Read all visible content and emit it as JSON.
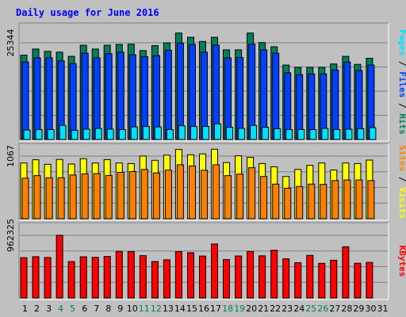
{
  "title": "Daily usage for June 2016",
  "chart_data": {
    "type": "bar",
    "title": "Daily usage for June 2016",
    "categories": [
      "1",
      "2",
      "3",
      "4",
      "5",
      "6",
      "7",
      "8",
      "9",
      "10",
      "11",
      "12",
      "13",
      "14",
      "15",
      "16",
      "17",
      "18",
      "19",
      "20",
      "21",
      "22",
      "23",
      "24",
      "25",
      "26",
      "27",
      "28",
      "29",
      "30",
      "31"
    ],
    "weekend_days": [
      "4",
      "5",
      "11",
      "12",
      "18",
      "19",
      "25",
      "26"
    ],
    "panels": [
      {
        "id": "top",
        "ymax_label": "25344",
        "ymax": 25344,
        "series": [
          {
            "name": "Hits",
            "color": "#00805a",
            "values": [
              22100,
              23700,
              23100,
              22900,
              21800,
              24700,
              23700,
              24700,
              24900,
              25000,
              23300,
              24600,
              25344,
              27900,
              26800,
              25700,
              26800,
              23500,
              23500,
              27900,
              25400,
              24300,
              19500,
              18900,
              18900,
              18900,
              19800,
              21800,
              19700,
              21300
            ]
          },
          {
            "name": "Files",
            "color": "#0040ff",
            "values": [
              20300,
              21400,
              21400,
              20600,
              19900,
              22600,
              21400,
              22500,
              22900,
              22200,
              21700,
              22000,
              23400,
              25300,
              24900,
              22900,
              24700,
              21400,
              21500,
              25000,
              23500,
              22600,
              17500,
              17000,
              17200,
              17200,
              18200,
              20300,
              18100,
              19500
            ]
          },
          {
            "name": "Pages",
            "color": "#00e0ff",
            "values": [
              2500,
              2600,
              2600,
              3700,
              2400,
              2700,
              2900,
              2700,
              2600,
              3300,
              3400,
              3300,
              2600,
              3600,
              3400,
              3400,
              4100,
              3200,
              2900,
              3700,
              3200,
              2800,
              2600,
              2600,
              2600,
              2900,
              2600,
              2700,
              2800,
              3100
            ]
          }
        ]
      },
      {
        "id": "middle",
        "ymax_label": "1067",
        "ymax": 1067,
        "series": [
          {
            "name": "Visits",
            "color": "#ffff00",
            "values": [
              950,
              1005,
              928,
              1010,
              932,
              1022,
              950,
              1008,
              950,
              940,
              1068,
              995,
              1083,
              1180,
              1090,
              1105,
              1185,
              958,
              1072,
              1045,
              940,
              885,
              720,
              840,
              910,
              950,
              830,
              950,
              940,
              1000
            ]
          },
          {
            "name": "Sites",
            "color": "#ff8000",
            "values": [
              690,
              735,
              698,
              700,
              745,
              765,
              768,
              738,
              790,
              805,
              840,
              780,
              828,
              920,
              900,
              825,
              920,
              735,
              760,
              870,
              720,
              590,
              520,
              550,
              590,
              585,
              650,
              660,
              660,
              650
            ]
          }
        ]
      },
      {
        "id": "bottom",
        "ymax_label": "962325",
        "ymax": 962325,
        "series": [
          {
            "name": "KBytes",
            "color": "#ff0000",
            "values": [
              620000,
              635000,
              622000,
              964000,
              560000,
              633000,
              625000,
              638000,
              716000,
              712000,
              650000,
              560000,
              587000,
              713000,
              695000,
              645000,
              830000,
              590000,
              646000,
              714000,
              648000,
              734000,
              602000,
              542000,
              655000,
              532000,
              580000,
              787000,
              533000,
              547000
            ]
          }
        ]
      }
    ],
    "right_legend": {
      "top": [
        {
          "text": "Pages",
          "color": "#00e0ff"
        },
        {
          "text": " / ",
          "color": "#000000"
        },
        {
          "text": "Files",
          "color": "#0040ff"
        },
        {
          "text": " / ",
          "color": "#000000"
        },
        {
          "text": "Hits",
          "color": "#00805a"
        }
      ],
      "middle": [
        {
          "text": "Sites",
          "color": "#ff8000"
        },
        {
          "text": " / ",
          "color": "#000000"
        },
        {
          "text": "Visits",
          "color": "#ffff00"
        }
      ],
      "bottom": [
        {
          "text": "KBytes",
          "color": "#ff0000"
        }
      ]
    },
    "colors": {
      "background": "#c0c0c0",
      "plot_background": "#c0c0c0",
      "title": "#0000ff",
      "weekday_label": "#000000",
      "weekend_label": "#00805a"
    }
  }
}
